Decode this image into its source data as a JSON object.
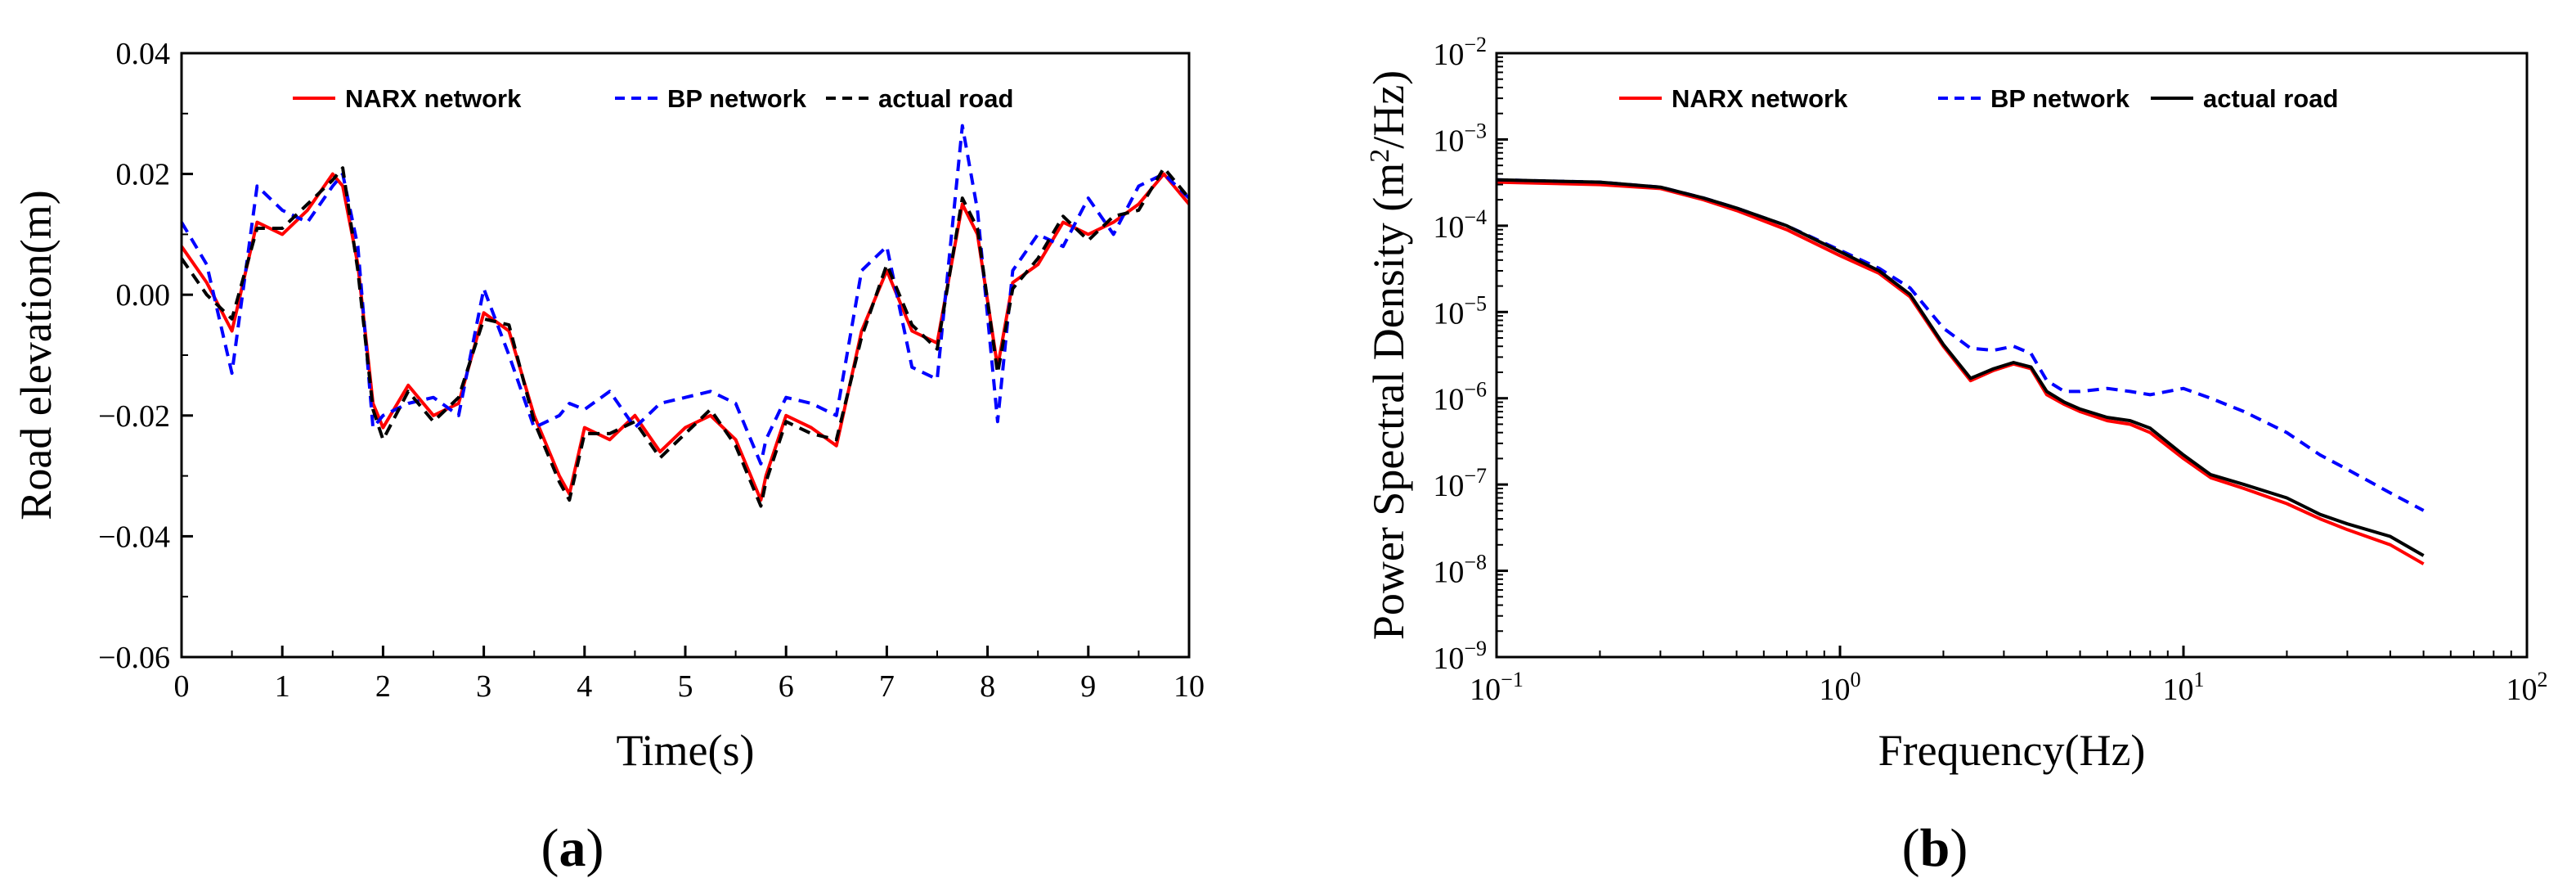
{
  "chart_data": [
    {
      "type": "line",
      "panel_label": "a",
      "title": "",
      "xlabel": "Time(s)",
      "ylabel": "Road elevation(m)",
      "xlim": [
        0,
        10
      ],
      "ylim": [
        -0.06,
        0.04
      ],
      "xticks": [
        0,
        1,
        2,
        3,
        4,
        5,
        6,
        7,
        8,
        9,
        10
      ],
      "xtick_labels": [
        "0",
        "1",
        "2",
        "3",
        "4",
        "5",
        "6",
        "7",
        "8",
        "9",
        "10"
      ],
      "yticks": [
        -0.06,
        -0.04,
        -0.02,
        0.0,
        0.02,
        0.04
      ],
      "ytick_labels": [
        "−0.06",
        "−0.04",
        "−0.02",
        "0.00",
        "0.02",
        "0.04"
      ],
      "legend_position": "top",
      "x": [
        0,
        0.25,
        0.5,
        0.75,
        1.0,
        1.25,
        1.5,
        1.6,
        1.75,
        1.9,
        2.0,
        2.25,
        2.5,
        2.75,
        3.0,
        3.25,
        3.5,
        3.75,
        3.85,
        4.0,
        4.25,
        4.5,
        4.75,
        5.0,
        5.25,
        5.5,
        5.75,
        5.8,
        6.0,
        6.25,
        6.5,
        6.75,
        7.0,
        7.25,
        7.5,
        7.75,
        7.9,
        8.1,
        8.25,
        8.5,
        8.75,
        9.0,
        9.25,
        9.5,
        9.75,
        10.0
      ],
      "series": [
        {
          "name": "NARX network",
          "color": "#ff0000",
          "dash": "solid",
          "values": [
            0.008,
            0.002,
            -0.006,
            0.012,
            0.01,
            0.014,
            0.02,
            0.018,
            0.005,
            -0.018,
            -0.022,
            -0.015,
            -0.02,
            -0.018,
            -0.003,
            -0.006,
            -0.02,
            -0.03,
            -0.033,
            -0.022,
            -0.024,
            -0.02,
            -0.026,
            -0.022,
            -0.02,
            -0.024,
            -0.034,
            -0.03,
            -0.02,
            -0.022,
            -0.025,
            -0.006,
            0.004,
            -0.006,
            -0.008,
            0.015,
            0.01,
            -0.012,
            0.002,
            0.005,
            0.012,
            0.01,
            0.012,
            0.015,
            0.02,
            0.015
          ]
        },
        {
          "name": "BP network",
          "color": "#0000ff",
          "dash": "dashed",
          "values": [
            0.012,
            0.005,
            -0.013,
            0.018,
            0.014,
            0.012,
            0.018,
            0.02,
            0.008,
            -0.022,
            -0.02,
            -0.018,
            -0.017,
            -0.02,
            0.001,
            -0.01,
            -0.022,
            -0.02,
            -0.018,
            -0.019,
            -0.016,
            -0.022,
            -0.018,
            -0.017,
            -0.016,
            -0.018,
            -0.028,
            -0.024,
            -0.017,
            -0.018,
            -0.02,
            0.004,
            0.008,
            -0.012,
            -0.014,
            0.028,
            0.014,
            -0.021,
            0.004,
            0.01,
            0.008,
            0.016,
            0.01,
            0.018,
            0.02,
            0.016
          ]
        },
        {
          "name": "actual road",
          "color": "#000000",
          "dash": "dashed",
          "values": [
            0.006,
            0.0,
            -0.004,
            0.011,
            0.011,
            0.015,
            0.019,
            0.021,
            0.004,
            -0.019,
            -0.024,
            -0.016,
            -0.021,
            -0.017,
            -0.004,
            -0.005,
            -0.021,
            -0.031,
            -0.034,
            -0.023,
            -0.023,
            -0.021,
            -0.027,
            -0.023,
            -0.019,
            -0.025,
            -0.035,
            -0.031,
            -0.021,
            -0.023,
            -0.024,
            -0.007,
            0.005,
            -0.005,
            -0.009,
            0.016,
            0.011,
            -0.013,
            0.001,
            0.006,
            0.013,
            0.009,
            0.013,
            0.014,
            0.021,
            0.016
          ]
        }
      ]
    },
    {
      "type": "line",
      "panel_label": "b",
      "title": "",
      "xlabel": "Frequency(Hz)",
      "ylabel": "Power Spectral Density (m²/Hz)",
      "xscale": "log",
      "yscale": "log",
      "xlim": [
        0.1,
        100
      ],
      "ylim": [
        1e-09,
        0.01
      ],
      "xticks": [
        0.1,
        1,
        10,
        100
      ],
      "xtick_labels": [
        {
          "base": "10",
          "exp": "−1"
        },
        {
          "base": "10",
          "exp": "0"
        },
        {
          "base": "10",
          "exp": "1"
        },
        {
          "base": "10",
          "exp": "2"
        }
      ],
      "yticks": [
        1e-09,
        1e-08,
        1e-07,
        1e-06,
        1e-05,
        0.0001,
        0.001,
        0.01
      ],
      "ytick_labels": [
        {
          "base": "10",
          "exp": "−9"
        },
        {
          "base": "10",
          "exp": "−8"
        },
        {
          "base": "10",
          "exp": "−7"
        },
        {
          "base": "10",
          "exp": "−6"
        },
        {
          "base": "10",
          "exp": "−5"
        },
        {
          "base": "10",
          "exp": "−4"
        },
        {
          "base": "10",
          "exp": "−3"
        },
        {
          "base": "10",
          "exp": "−2"
        }
      ],
      "ylabel_parts": {
        "before": "Power Spectral Density (m",
        "sup": "2",
        "after": "/Hz)"
      },
      "legend_position": "top",
      "x": [
        0.1,
        0.2,
        0.3,
        0.4,
        0.5,
        0.7,
        1.0,
        1.3,
        1.6,
        2.0,
        2.4,
        2.8,
        3.2,
        3.6,
        4.0,
        4.5,
        5.0,
        6.0,
        7.0,
        8.0,
        10.0,
        12.0,
        15.0,
        20.0,
        25.0,
        30.0,
        40.0,
        50.0
      ],
      "series": [
        {
          "name": "NARX network",
          "color": "#ff0000",
          "dash": "solid",
          "values": [
            0.00032,
            0.0003,
            0.00027,
            0.0002,
            0.00015,
            9e-05,
            4.5e-05,
            2.8e-05,
            1.5e-05,
            4e-06,
            1.6e-06,
            2.1e-06,
            2.5e-06,
            2.2e-06,
            1.1e-06,
            8.5e-07,
            7e-07,
            5.5e-07,
            5e-07,
            4e-07,
            2e-07,
            1.2e-07,
            9e-08,
            6e-08,
            4e-08,
            3e-08,
            2e-08,
            1.2e-08
          ]
        },
        {
          "name": "BP network",
          "color": "#0000ff",
          "dash": "dashed",
          "values": [
            0.00034,
            0.00032,
            0.00028,
            0.00021,
            0.00016,
            0.0001,
            5.2e-05,
            3.2e-05,
            1.9e-05,
            6.5e-06,
            3.8e-06,
            3.6e-06,
            4e-06,
            3.3e-06,
            1.6e-06,
            1.2e-06,
            1.2e-06,
            1.3e-06,
            1.2e-06,
            1.1e-06,
            1.3e-06,
            1e-06,
            7e-07,
            4e-07,
            2.2e-07,
            1.5e-07,
            8e-08,
            5e-08
          ]
        },
        {
          "name": "actual road",
          "color": "#000000",
          "dash": "solid",
          "values": [
            0.00034,
            0.00032,
            0.00028,
            0.00021,
            0.00016,
            0.0001,
            5e-05,
            3e-05,
            1.6e-05,
            4.2e-06,
            1.7e-06,
            2.2e-06,
            2.6e-06,
            2.3e-06,
            1.2e-06,
            9e-07,
            7.5e-07,
            6e-07,
            5.5e-07,
            4.5e-07,
            2.2e-07,
            1.3e-07,
            1e-07,
            7e-08,
            4.5e-08,
            3.5e-08,
            2.5e-08,
            1.5e-08
          ]
        }
      ]
    }
  ]
}
